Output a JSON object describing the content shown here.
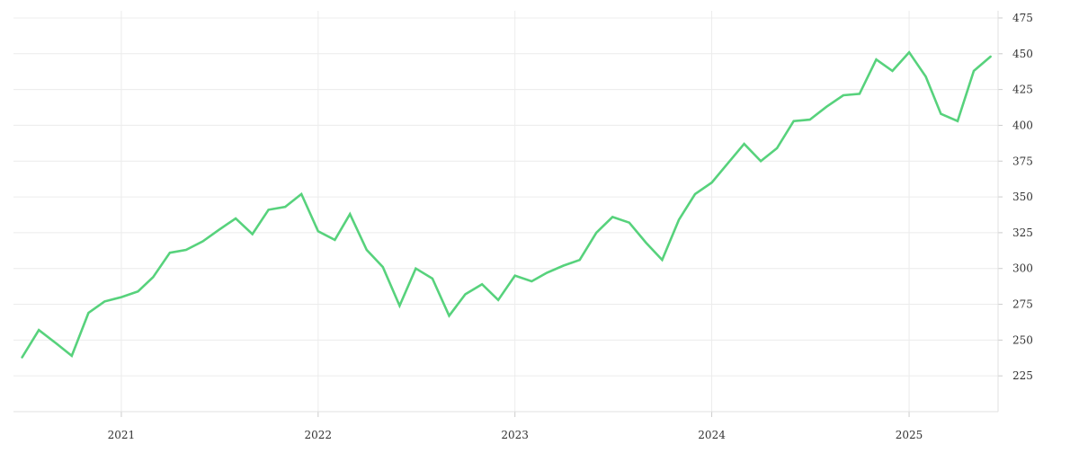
{
  "chart_data": {
    "type": "line",
    "title": "",
    "xlabel": "",
    "ylabel": "",
    "grid": true,
    "ylim": [
      200,
      480
    ],
    "yticks": [
      225,
      250,
      275,
      300,
      325,
      350,
      375,
      400,
      425,
      450,
      475
    ],
    "xticks": [
      {
        "label": "2021",
        "value": "2021-01-01"
      },
      {
        "label": "2022",
        "value": "2022-01-01"
      },
      {
        "label": "2023",
        "value": "2023-01-01"
      },
      {
        "label": "2024",
        "value": "2024-01-01"
      },
      {
        "label": "2025",
        "value": "2025-01-01"
      }
    ],
    "xlim": [
      "2020-06-15",
      "2025-06-15"
    ],
    "series": [
      {
        "color": "#57d27c",
        "x": [
          "2020-07-01",
          "2020-08-01",
          "2020-09-01",
          "2020-10-01",
          "2020-11-01",
          "2020-12-01",
          "2021-01-01",
          "2021-02-01",
          "2021-03-01",
          "2021-04-01",
          "2021-05-01",
          "2021-06-01",
          "2021-07-01",
          "2021-08-01",
          "2021-09-01",
          "2021-10-01",
          "2021-11-01",
          "2021-12-01",
          "2022-01-01",
          "2022-02-01",
          "2022-03-01",
          "2022-04-01",
          "2022-05-01",
          "2022-06-01",
          "2022-07-01",
          "2022-08-01",
          "2022-09-01",
          "2022-10-01",
          "2022-11-01",
          "2022-12-01",
          "2023-01-01",
          "2023-02-01",
          "2023-03-01",
          "2023-04-01",
          "2023-05-01",
          "2023-06-01",
          "2023-07-01",
          "2023-08-01",
          "2023-09-01",
          "2023-10-01",
          "2023-11-01",
          "2023-12-01",
          "2024-01-01",
          "2024-02-01",
          "2024-03-01",
          "2024-04-01",
          "2024-05-01",
          "2024-06-01",
          "2024-07-01",
          "2024-08-01",
          "2024-09-01",
          "2024-10-01",
          "2024-11-01",
          "2024-12-01",
          "2025-01-01",
          "2025-02-01",
          "2025-03-01",
          "2025-04-01",
          "2025-05-01",
          "2025-06-01"
        ],
        "y": [
          238,
          257,
          248,
          239,
          269,
          277,
          280,
          284,
          294,
          311,
          313,
          319,
          327,
          335,
          324,
          341,
          343,
          352,
          326,
          320,
          338,
          313,
          301,
          274,
          300,
          293,
          267,
          282,
          289,
          278,
          295,
          291,
          297,
          302,
          306,
          325,
          336,
          332,
          318,
          306,
          334,
          352,
          360,
          374,
          387,
          375,
          384,
          403,
          404,
          413,
          421,
          422,
          446,
          438,
          451,
          434,
          408,
          403,
          438,
          448
        ]
      }
    ]
  }
}
